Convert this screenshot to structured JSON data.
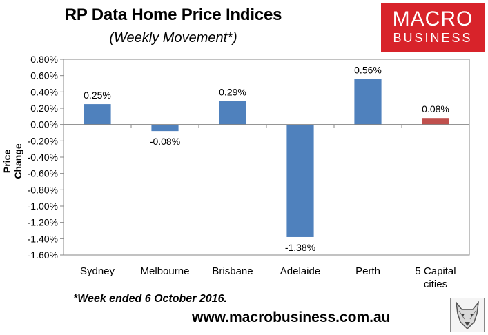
{
  "header": {
    "title": "RP Data Home Price Indices",
    "subtitle": "(Weekly Movement*)"
  },
  "logo": {
    "line1": "MACRO",
    "line2": "BUSINESS"
  },
  "footer": {
    "note": "*Week ended 6 October 2016.",
    "url": "www.macrobusiness.com.au"
  },
  "badge": {
    "icon": "wolf-head-icon"
  },
  "colors": {
    "series": "#4f81bd",
    "highlight": "#c0504d",
    "logo": "#d8232a"
  },
  "chart_data": {
    "type": "bar",
    "ylabel": "Price Change",
    "categories": [
      "Sydney",
      "Melbourne",
      "Brisbane",
      "Adelaide",
      "Perth",
      "5 Capital cities"
    ],
    "values": [
      0.25,
      -0.08,
      0.29,
      -1.38,
      0.56,
      0.08
    ],
    "data_labels": [
      "0.25%",
      "-0.08%",
      "0.29%",
      "-1.38%",
      "0.56%",
      "0.08%"
    ],
    "bar_colors": [
      "#4f81bd",
      "#4f81bd",
      "#4f81bd",
      "#4f81bd",
      "#4f81bd",
      "#c0504d"
    ],
    "ylim": [
      -1.6,
      0.8
    ],
    "yticks": [
      0.8,
      0.6,
      0.4,
      0.2,
      0.0,
      -0.2,
      -0.4,
      -0.6,
      -0.8,
      -1.0,
      -1.2,
      -1.4,
      -1.6
    ],
    "ytick_labels": [
      "0.80%",
      "0.60%",
      "0.40%",
      "0.20%",
      "0.00%",
      "-0.20%",
      "-0.40%",
      "-0.60%",
      "-0.80%",
      "-1.00%",
      "-1.20%",
      "-1.40%",
      "-1.60%"
    ],
    "grid": false,
    "legend": "none"
  }
}
